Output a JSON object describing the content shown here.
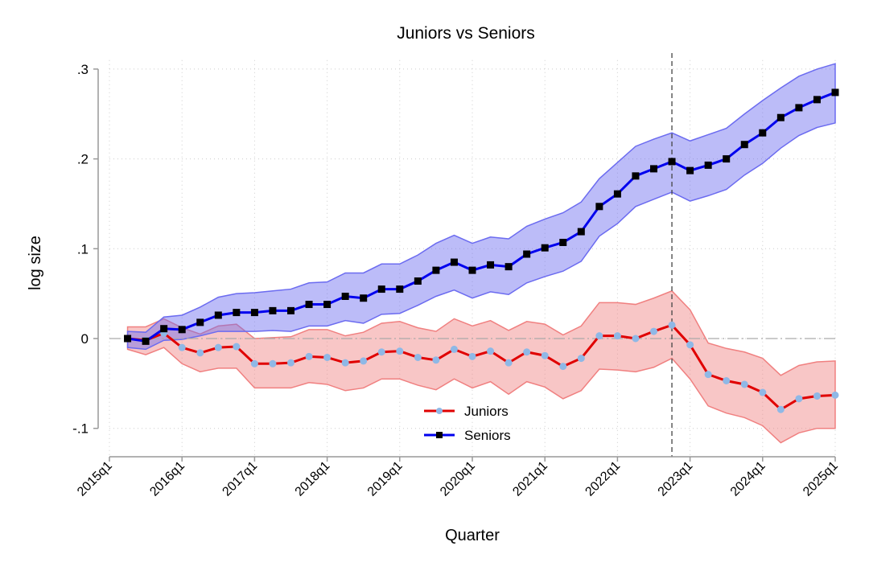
{
  "chart_data": {
    "type": "line",
    "title": "Juniors vs Seniors",
    "xlabel": "Quarter",
    "ylabel": "log size",
    "ylim": [
      -0.13,
      0.31
    ],
    "yticks": [
      -0.1,
      0,
      0.1,
      0.2,
      0.3
    ],
    "ytick_labels": [
      "-.1",
      "0",
      ".1",
      ".2",
      ".3"
    ],
    "xtick_labels": [
      "2015q1",
      "2016q1",
      "2017q1",
      "2018q1",
      "2019q1",
      "2020q1",
      "2021q1",
      "2022q1",
      "2023q1",
      "2024q1",
      "2025q1"
    ],
    "grid": true,
    "reference_line_y": 0,
    "reference_line_x": "2022q4",
    "legend_position": "bottom-center",
    "x": [
      "2015q2",
      "2015q3",
      "2015q4",
      "2016q1",
      "2016q2",
      "2016q3",
      "2016q4",
      "2017q1",
      "2017q2",
      "2017q3",
      "2017q4",
      "2018q1",
      "2018q2",
      "2018q3",
      "2018q4",
      "2019q1",
      "2019q2",
      "2019q3",
      "2019q4",
      "2020q1",
      "2020q2",
      "2020q3",
      "2020q4",
      "2021q1",
      "2021q2",
      "2021q3",
      "2021q4",
      "2022q1",
      "2022q2",
      "2022q3",
      "2022q4",
      "2023q1",
      "2023q2",
      "2023q3",
      "2023q4",
      "2024q1",
      "2024q2",
      "2024q3",
      "2024q4",
      "2025q1"
    ],
    "series": [
      {
        "name": "Juniors",
        "line_color": "#e00000",
        "marker_color": "#8fb8e6",
        "band_color": "#f08080",
        "marker": "circle",
        "values": [
          0,
          -0.002,
          0.006,
          -0.01,
          -0.016,
          -0.01,
          -0.009,
          -0.028,
          -0.028,
          -0.027,
          -0.02,
          -0.021,
          -0.027,
          -0.025,
          -0.015,
          -0.014,
          -0.021,
          -0.024,
          -0.012,
          -0.02,
          -0.014,
          -0.027,
          -0.015,
          -0.019,
          -0.031,
          -0.022,
          0.003,
          0.003,
          0.0,
          0.008,
          0.015,
          -0.007,
          -0.04,
          -0.047,
          -0.051,
          -0.06,
          -0.079,
          -0.067,
          -0.064,
          -0.063
        ],
        "ci_upper": [
          0.013,
          0.013,
          0.022,
          0.012,
          0.005,
          0.014,
          0.016,
          0.0,
          0.001,
          0.002,
          0.01,
          0.01,
          0.003,
          0.007,
          0.017,
          0.019,
          0.012,
          0.008,
          0.022,
          0.014,
          0.02,
          0.009,
          0.019,
          0.016,
          0.004,
          0.014,
          0.04,
          0.04,
          0.038,
          0.045,
          0.053,
          0.032,
          -0.005,
          -0.011,
          -0.015,
          -0.022,
          -0.041,
          -0.03,
          -0.026,
          -0.025
        ],
        "ci_lower": [
          -0.012,
          -0.018,
          -0.01,
          -0.028,
          -0.037,
          -0.033,
          -0.033,
          -0.055,
          -0.055,
          -0.055,
          -0.049,
          -0.051,
          -0.058,
          -0.055,
          -0.045,
          -0.045,
          -0.052,
          -0.057,
          -0.045,
          -0.055,
          -0.048,
          -0.062,
          -0.048,
          -0.054,
          -0.067,
          -0.058,
          -0.034,
          -0.035,
          -0.037,
          -0.032,
          -0.022,
          -0.045,
          -0.075,
          -0.083,
          -0.088,
          -0.097,
          -0.116,
          -0.105,
          -0.1,
          -0.1
        ]
      },
      {
        "name": "Seniors",
        "line_color": "#0000ee",
        "marker_color": "#000000",
        "band_color": "#6b6bf0",
        "marker": "square",
        "values": [
          0,
          -0.003,
          0.011,
          0.01,
          0.018,
          0.026,
          0.029,
          0.029,
          0.031,
          0.031,
          0.038,
          0.038,
          0.047,
          0.045,
          0.055,
          0.055,
          0.064,
          0.076,
          0.085,
          0.076,
          0.082,
          0.08,
          0.094,
          0.101,
          0.107,
          0.119,
          0.147,
          0.161,
          0.181,
          0.189,
          0.197,
          0.187,
          0.193,
          0.2,
          0.216,
          0.229,
          0.246,
          0.257,
          0.266,
          0.274
        ],
        "ci_upper": [
          0.008,
          0.007,
          0.024,
          0.026,
          0.035,
          0.046,
          0.05,
          0.051,
          0.053,
          0.055,
          0.062,
          0.063,
          0.073,
          0.073,
          0.083,
          0.083,
          0.093,
          0.106,
          0.115,
          0.106,
          0.113,
          0.111,
          0.125,
          0.133,
          0.14,
          0.152,
          0.178,
          0.196,
          0.214,
          0.222,
          0.229,
          0.22,
          0.227,
          0.234,
          0.25,
          0.265,
          0.279,
          0.292,
          0.3,
          0.306
        ],
        "ci_lower": [
          -0.01,
          -0.012,
          -0.002,
          -0.001,
          0.003,
          0.008,
          0.008,
          0.008,
          0.009,
          0.008,
          0.014,
          0.014,
          0.02,
          0.017,
          0.027,
          0.028,
          0.037,
          0.047,
          0.054,
          0.045,
          0.052,
          0.049,
          0.062,
          0.069,
          0.075,
          0.086,
          0.114,
          0.128,
          0.147,
          0.155,
          0.163,
          0.153,
          0.159,
          0.166,
          0.182,
          0.195,
          0.212,
          0.226,
          0.235,
          0.24
        ]
      }
    ]
  }
}
